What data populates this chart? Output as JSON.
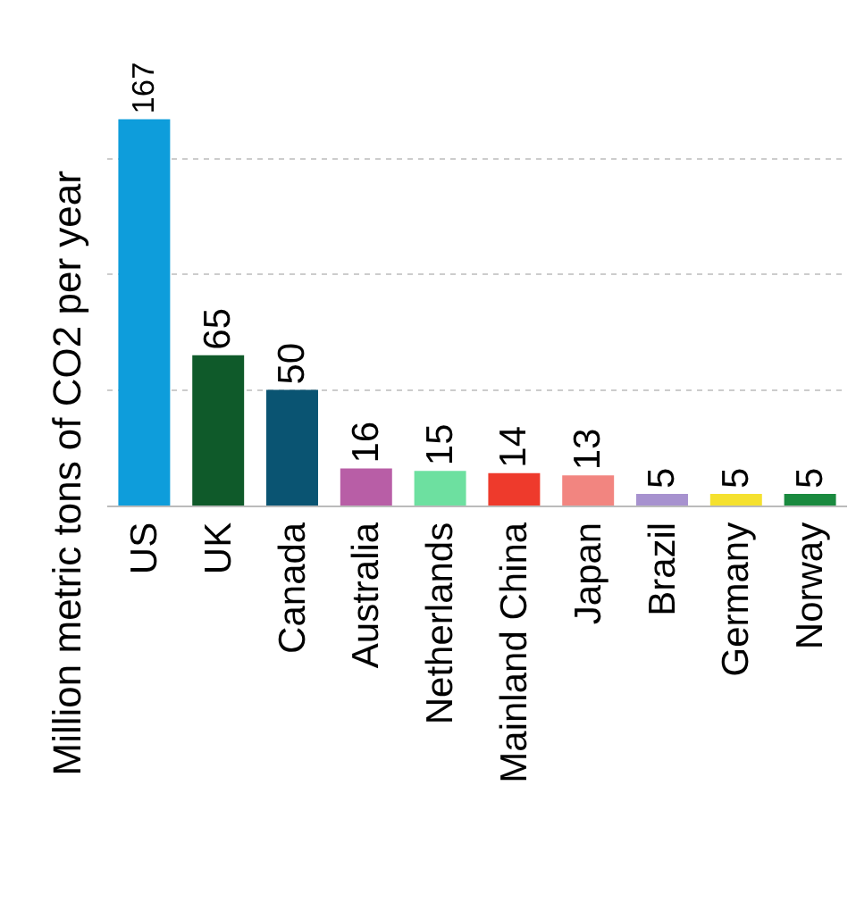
{
  "chart_data": {
    "type": "bar",
    "ylabel": "Million metric tons of CO2 per year",
    "categories": [
      "US",
      "UK",
      "Canada",
      "Australia",
      "Netherlands",
      "Mainland China",
      "Japan",
      "Brazil",
      "Germany",
      "Norway"
    ],
    "values": [
      167,
      65,
      50,
      16,
      15,
      14,
      13,
      5,
      5,
      5
    ],
    "colors": [
      "#0e9ddb",
      "#0f5a2a",
      "#0a5472",
      "#b85ea6",
      "#6de0a0",
      "#ee3a2c",
      "#f28580",
      "#a792cf",
      "#f5e12f",
      "#1a8a3f"
    ],
    "data_labels": true,
    "ylim": [
      0,
      217
    ],
    "yticks": [
      {
        "value": 0,
        "label": null
      },
      {
        "value": 50,
        "label": null
      },
      {
        "value": 100,
        "label": null
      },
      {
        "value": 150,
        "label": null
      }
    ],
    "grid": "y",
    "tick_labels": "x",
    "legend": false
  }
}
